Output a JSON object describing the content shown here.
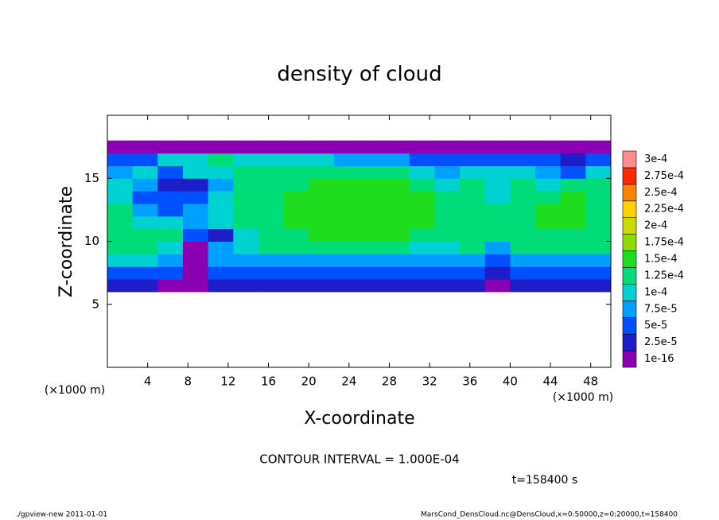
{
  "chart_data": {
    "type": "heatmap",
    "title": "density of cloud",
    "x_label": "X-coordinate",
    "y_label": "Z-coordinate",
    "x_unit": "(×1000 m)",
    "y_unit": "(×1000 m)",
    "xlim": [
      0,
      50
    ],
    "ylim": [
      0,
      20
    ],
    "xticks": [
      4,
      8,
      12,
      16,
      20,
      24,
      28,
      32,
      36,
      40,
      44,
      48
    ],
    "yticks": [
      5,
      10,
      15
    ],
    "x": [
      1.25,
      3.75,
      6.25,
      8.75,
      11.25,
      13.75,
      16.25,
      18.75,
      21.25,
      23.75,
      26.25,
      28.75,
      31.25,
      33.75,
      36.25,
      38.75,
      41.25,
      43.75,
      46.25,
      48.75
    ],
    "y": [
      6.5,
      7.5,
      8.5,
      9.5,
      10.5,
      11.5,
      12.5,
      13.5,
      14.5,
      15.5,
      16.5,
      17.5
    ],
    "z": [
      [
        3e-05,
        3e-05,
        2e-05,
        1e-05,
        3e-05,
        3e-05,
        3e-05,
        3e-05,
        3e-05,
        3e-05,
        3e-05,
        3e-05,
        3e-05,
        3e-05,
        3e-05,
        1e-05,
        3e-05,
        3e-05,
        3e-05,
        3e-05
      ],
      [
        6e-05,
        6e-05,
        5e-05,
        2e-05,
        5e-05,
        6e-05,
        6e-05,
        6e-05,
        6e-05,
        6e-05,
        6e-05,
        6e-05,
        6e-05,
        6e-05,
        6e-05,
        3e-05,
        6e-05,
        6e-05,
        6e-05,
        6e-05
      ],
      [
        0.00012,
        0.00011,
        8e-05,
        2e-05,
        8e-05,
        9e-05,
        9e-05,
        9e-05,
        9e-05,
        9e-05,
        9e-05,
        9e-05,
        8e-05,
        9e-05,
        9e-05,
        6e-05,
        9e-05,
        9e-05,
        9e-05,
        9e-05
      ],
      [
        0.00013,
        0.00013,
        0.00012,
        2e-05,
        8e-05,
        0.00012,
        0.00013,
        0.00013,
        0.00013,
        0.00013,
        0.00013,
        0.00013,
        0.00012,
        0.0001,
        0.00013,
        8e-05,
        0.00013,
        0.00013,
        0.00013,
        0.00013
      ],
      [
        0.00014,
        0.00013,
        0.00013,
        7e-05,
        3e-05,
        0.00011,
        0.00014,
        0.00014,
        0.00015,
        0.00015,
        0.00016,
        0.00016,
        0.00013,
        0.00013,
        0.00014,
        0.00013,
        0.00014,
        0.00014,
        0.00014,
        0.00014
      ],
      [
        0.00014,
        0.00012,
        0.0001,
        9e-05,
        0.0001,
        0.00013,
        0.00014,
        0.00015,
        0.00015,
        0.00016,
        0.00016,
        0.00016,
        0.00015,
        0.00013,
        0.00013,
        0.00014,
        0.00014,
        0.00015,
        0.00015,
        0.00014
      ],
      [
        0.00013,
        9e-05,
        7e-05,
        8e-05,
        0.00012,
        0.00014,
        0.00014,
        0.00015,
        0.00015,
        0.00016,
        0.00017,
        0.00016,
        0.00015,
        0.00013,
        0.00014,
        0.00013,
        0.00014,
        0.00015,
        0.00015,
        0.00014
      ],
      [
        0.00011,
        7e-05,
        5e-05,
        6e-05,
        0.0001,
        0.00014,
        0.00014,
        0.00015,
        0.00015,
        0.00016,
        0.00016,
        0.00016,
        0.00015,
        0.00013,
        0.00013,
        0.00012,
        0.00014,
        0.00014,
        0.00015,
        0.00014
      ],
      [
        0.00012,
        8e-05,
        4e-05,
        3e-05,
        9e-05,
        0.00013,
        0.00014,
        0.00014,
        0.00015,
        0.00015,
        0.00015,
        0.00015,
        0.00014,
        0.00012,
        0.00013,
        0.00012,
        0.00013,
        0.00012,
        0.00014,
        0.00013
      ],
      [
        8e-05,
        0.00011,
        6e-05,
        0.0001,
        0.00012,
        0.00013,
        0.00014,
        0.00014,
        0.00013,
        0.00014,
        0.00014,
        0.00013,
        0.00011,
        8e-05,
        0.0001,
        0.00011,
        0.00011,
        8e-05,
        6e-05,
        0.0001
      ],
      [
        6e-05,
        7e-05,
        0.0001,
        0.00012,
        0.00013,
        0.00012,
        0.00011,
        0.00012,
        0.0001,
        9e-05,
        8e-05,
        8e-05,
        6e-05,
        5e-05,
        6e-05,
        5e-05,
        7e-05,
        5e-05,
        4e-05,
        5e-05
      ],
      [
        2e-05,
        2e-05,
        2e-05,
        2e-05,
        2e-05,
        2e-05,
        2e-05,
        2e-05,
        2e-05,
        1e-05,
        1e-05,
        1e-05,
        1e-05,
        2e-05,
        2e-05,
        2e-05,
        2e-05,
        2e-05,
        2e-05,
        2e-05
      ]
    ],
    "levels": [
      {
        "value": 1e-16,
        "label": "1e-16"
      },
      {
        "value": 2.5e-05,
        "label": "2.5e-5"
      },
      {
        "value": 5e-05,
        "label": "5e-5"
      },
      {
        "value": 7.5e-05,
        "label": "7.5e-5"
      },
      {
        "value": 0.0001,
        "label": "1e-4"
      },
      {
        "value": 0.000125,
        "label": "1.25e-4"
      },
      {
        "value": 0.00015,
        "label": "1.5e-4"
      },
      {
        "value": 0.000175,
        "label": "1.75e-4"
      },
      {
        "value": 0.0002,
        "label": "2e-4"
      },
      {
        "value": 0.000225,
        "label": "2.25e-4"
      },
      {
        "value": 0.00025,
        "label": "2.5e-4"
      },
      {
        "value": 0.000275,
        "label": "2.75e-4"
      },
      {
        "value": 0.0003,
        "label": "3e-4"
      }
    ],
    "colors": [
      "#8c00b4",
      "#1e1ec8",
      "#0050ff",
      "#00a0ff",
      "#00d2d2",
      "#00dc78",
      "#1edc1e",
      "#8cdc00",
      "#c8dc00",
      "#ffd200",
      "#ff8200",
      "#ff2800",
      "#ff8c8c"
    ],
    "contour_note": "CONTOUR INTERVAL = 1.000E-04",
    "time_note": "t=158400 s",
    "footer_left": "./gpview-new  2011-01-01",
    "footer_right": "MarsCond_DensCloud.nc@DensCloud,x=0:50000,z=0:20000,t=158400"
  }
}
